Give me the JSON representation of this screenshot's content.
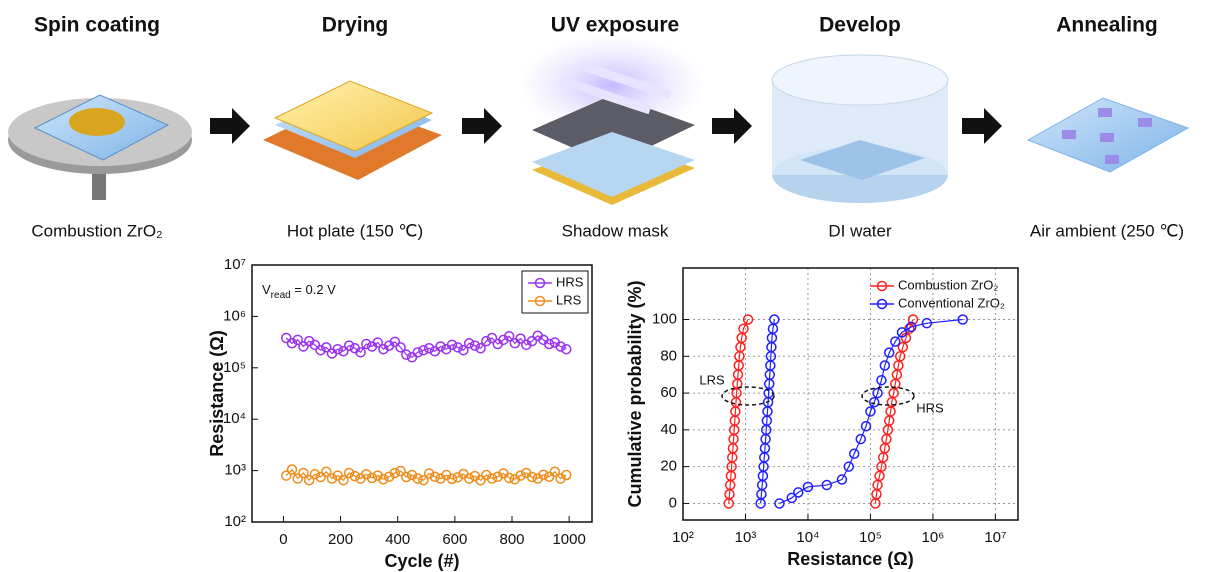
{
  "process": [
    {
      "title": "Spin coating",
      "caption": "Combustion ZrO₂"
    },
    {
      "title": "Drying",
      "caption": "Hot plate (150 ℃)"
    },
    {
      "title": "UV exposure",
      "caption": "Shadow mask"
    },
    {
      "title": "Develop",
      "caption": "DI water"
    },
    {
      "title": "Annealing",
      "caption": "Air ambient (250 ℃)"
    }
  ],
  "chart_data": [
    {
      "type": "line",
      "xlabel": "Cycle (#)",
      "ylabel": "Resistance (Ω)",
      "annotation": {
        "main": "V",
        "sub": "read",
        "rest": " = 0.2 V"
      },
      "xlim": [
        -110,
        1080
      ],
      "xticks": [
        0,
        200,
        400,
        600,
        800,
        1000
      ],
      "ylog": true,
      "ylim": [
        100,
        10000000
      ],
      "yticks": [
        {
          "value": 100,
          "label": "10²"
        },
        {
          "value": 1000,
          "label": "10³"
        },
        {
          "value": 10000,
          "label": "10⁴"
        },
        {
          "value": 100000,
          "label": "10⁵"
        },
        {
          "value": 1000000,
          "label": "10⁶"
        },
        {
          "value": 10000000,
          "label": "10⁷"
        }
      ],
      "grid": false,
      "legend": "upper right",
      "legend_frame": true,
      "x": [
        10,
        30,
        50,
        70,
        90,
        110,
        130,
        150,
        170,
        190,
        210,
        230,
        250,
        270,
        290,
        310,
        330,
        350,
        370,
        390,
        410,
        430,
        450,
        470,
        490,
        510,
        530,
        550,
        570,
        590,
        610,
        630,
        650,
        670,
        690,
        710,
        730,
        750,
        770,
        790,
        810,
        830,
        850,
        870,
        890,
        910,
        930,
        950,
        970,
        990
      ],
      "series": [
        {
          "name": "HRS",
          "color": "#9b30f0",
          "values": [
            380000,
            300000,
            350000,
            260000,
            330000,
            280000,
            220000,
            250000,
            190000,
            230000,
            210000,
            270000,
            240000,
            200000,
            290000,
            260000,
            310000,
            230000,
            270000,
            320000,
            250000,
            180000,
            160000,
            200000,
            220000,
            240000,
            210000,
            260000,
            230000,
            280000,
            250000,
            220000,
            300000,
            270000,
            240000,
            330000,
            380000,
            290000,
            350000,
            410000,
            300000,
            370000,
            280000,
            330000,
            420000,
            350000,
            290000,
            310000,
            260000,
            230000
          ]
        },
        {
          "name": "LRS",
          "color": "#f08c1a",
          "values": [
            800,
            1050,
            700,
            900,
            650,
            850,
            750,
            950,
            700,
            800,
            650,
            900,
            780,
            700,
            850,
            720,
            800,
            680,
            760,
            900,
            980,
            750,
            820,
            700,
            650,
            880,
            760,
            700,
            820,
            690,
            740,
            860,
            700,
            780,
            650,
            820,
            700,
            760,
            880,
            720,
            680,
            800,
            900,
            750,
            700,
            830,
            760,
            950,
            700,
            820
          ]
        }
      ]
    },
    {
      "type": "line",
      "xlabel": "Resistance (Ω)",
      "ylabel": "Cumulative probability (%)",
      "annotations": [
        {
          "text": "LRS"
        },
        {
          "text": "HRS"
        }
      ],
      "xlog": true,
      "xlim": [
        100,
        23000000
      ],
      "xticks": [
        {
          "value": 100,
          "label": "10²"
        },
        {
          "value": 1000,
          "label": "10³"
        },
        {
          "value": 10000,
          "label": "10⁴"
        },
        {
          "value": 100000,
          "label": "10⁵"
        },
        {
          "value": 1000000,
          "label": "10⁶"
        },
        {
          "value": 10000000,
          "label": "10⁷"
        }
      ],
      "ylim": [
        -9,
        128
      ],
      "yticks": [
        0,
        20,
        40,
        60,
        80,
        100
      ],
      "grid": true,
      "legend": "upper right",
      "legend_frame": false,
      "series": [
        {
          "name": "Combustion ZrO₂",
          "color": "#ff1f1f",
          "x": [
            540,
            555,
            570,
            585,
            600,
            615,
            630,
            645,
            660,
            675,
            690,
            705,
            720,
            740,
            760,
            780,
            800,
            830,
            870,
            930,
            1100,
            null,
            120000,
            125000,
            130000,
            140000,
            150000,
            160000,
            170000,
            180000,
            190000,
            200000,
            210000,
            220000,
            235000,
            250000,
            265000,
            280000,
            300000,
            330000,
            370000,
            420000,
            480000
          ],
          "values": [
            0,
            5,
            10,
            15,
            20,
            25,
            30,
            35,
            40,
            45,
            50,
            55,
            60,
            65,
            70,
            75,
            80,
            85,
            90,
            95,
            100,
            null,
            0,
            5,
            10,
            15,
            20,
            25,
            30,
            35,
            40,
            45,
            50,
            55,
            60,
            65,
            70,
            75,
            80,
            85,
            90,
            95,
            100
          ]
        },
        {
          "name": "Conventional ZrO₂",
          "color": "#1f1fff",
          "x": [
            1750,
            1800,
            1850,
            1900,
            1950,
            2000,
            2050,
            2100,
            2150,
            2200,
            2250,
            2300,
            2350,
            2400,
            2450,
            2500,
            2550,
            2600,
            2650,
            2750,
            2900,
            null,
            3500,
            5500,
            7000,
            10000,
            20000,
            35000,
            45000,
            55000,
            70000,
            85000,
            100000,
            115000,
            130000,
            150000,
            170000,
            200000,
            250000,
            320000,
            450000,
            800000,
            3000000
          ],
          "values": [
            0,
            5,
            10,
            15,
            20,
            25,
            30,
            35,
            40,
            45,
            50,
            55,
            60,
            65,
            70,
            75,
            80,
            85,
            90,
            95,
            100,
            null,
            0,
            3,
            6,
            9,
            10,
            13,
            20,
            27,
            35,
            42,
            50,
            55,
            60,
            67,
            75,
            82,
            88,
            93,
            96,
            98,
            100
          ]
        }
      ]
    }
  ]
}
